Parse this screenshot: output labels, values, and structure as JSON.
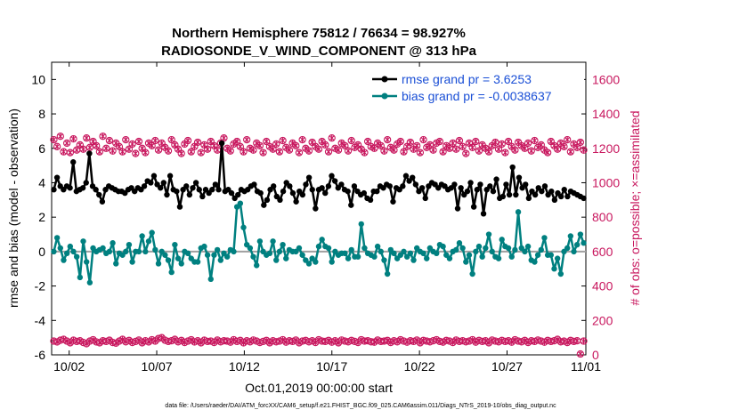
{
  "chart_data": {
    "type": "line",
    "title_line1": "Northern Hemisphere 75812 / 76634 = 98.927%",
    "title_line2": "RADIOSONDE_V_WIND_COMPONENT @ 313 hPa",
    "xlabel": "Oct.01,2019 00:00:00 start",
    "ylabel_left": "rmse and bias (model - observation)",
    "ylabel_right": "# of obs: o=possible; ×=assimilated",
    "footer": "data file: /Users/raeder/DAI/ATM_forcXX/CAM6_setup/f.e21.FHIST_BGC.f09_025.CAM6assim.011/Diags_NTrS_2019-10/obs_diag_output.nc",
    "xlim": [
      0.5,
      31.0
    ],
    "ylim_left": [
      -6,
      11
    ],
    "ylim_right": [
      0,
      1700
    ],
    "x_ticks": [
      1.5,
      6.5,
      11.5,
      16.5,
      21.5,
      26.5,
      31.0
    ],
    "x_tick_labels": [
      "10/02",
      "10/07",
      "10/12",
      "10/17",
      "10/22",
      "10/27",
      "11/01"
    ],
    "y_ticks_left": [
      -6,
      -4,
      -2,
      0,
      2,
      4,
      6,
      8,
      10
    ],
    "y_tick_labels_left": [
      "-6",
      "-4",
      "-2",
      "0",
      "2",
      "4",
      "6",
      "8",
      "10"
    ],
    "y_ticks_right": [
      0,
      200,
      400,
      600,
      800,
      1000,
      1200,
      1400,
      1600
    ],
    "y_tick_labels_right": [
      "0",
      "200",
      "400",
      "600",
      "800",
      "1000",
      "1200",
      "1400",
      "1600"
    ],
    "colors": {
      "rmse": "#000000",
      "bias": "#008080",
      "obs": "#c8175e",
      "legend_text": "#1a4fd6",
      "zero_line": "#a0a0a0"
    },
    "series": [
      {
        "name": "rmse grand pr = 3.6253",
        "axis": "left",
        "values": [
          3.6,
          4.3,
          3.8,
          3.6,
          3.8,
          3.7,
          5.2,
          3.5,
          3.6,
          3.7,
          4.0,
          5.7,
          3.8,
          3.6,
          3.3,
          2.9,
          3.6,
          3.8,
          3.7,
          3.6,
          3.5,
          3.5,
          3.4,
          3.6,
          3.7,
          3.5,
          3.7,
          3.6,
          3.8,
          4.1,
          4.0,
          4.4,
          3.9,
          3.7,
          4.0,
          3.3,
          4.4,
          3.6,
          3.5,
          2.6,
          3.6,
          3.8,
          3.3,
          3.7,
          4.0,
          3.6,
          3.2,
          3.6,
          3.4,
          3.6,
          3.9,
          3.6,
          6.3,
          3.5,
          3.6,
          3.4,
          3.1,
          3.3,
          3.6,
          3.5,
          3.6,
          3.8,
          3.9,
          3.5,
          3.4,
          2.7,
          3.0,
          3.6,
          3.8,
          3.2,
          3.0,
          3.5,
          4.0,
          3.8,
          3.4,
          2.9,
          3.5,
          3.3,
          3.9,
          4.3,
          3.6,
          2.5,
          3.6,
          3.7,
          3.4,
          3.8,
          4.4,
          4.1,
          3.7,
          3.9,
          3.6,
          3.5,
          2.7,
          3.8,
          3.5,
          3.3,
          3.4,
          3.1,
          3.0,
          3.5,
          3.5,
          3.8,
          3.7,
          3.9,
          3.8,
          2.9,
          3.7,
          3.6,
          3.8,
          4.4,
          4.1,
          4.3,
          3.9,
          3.5,
          3.7,
          3.1,
          3.8,
          4.0,
          3.9,
          3.7,
          3.9,
          3.8,
          3.6,
          3.7,
          3.9,
          2.5,
          3.7,
          3.3,
          3.5,
          4.0,
          2.6,
          3.6,
          3.9,
          2.2,
          3.6,
          3.8,
          3.5,
          4.2,
          3.1,
          3.2,
          3.9,
          3.3,
          4.9,
          3.3,
          4.3,
          3.7,
          3.9,
          3.1,
          3.5,
          3.3,
          3.7,
          3.5,
          3.8,
          3.3,
          3.5,
          3.0,
          3.4,
          3.2,
          3.6,
          3.2,
          3.5,
          3.4,
          3.3,
          3.2,
          3.1
        ]
      },
      {
        "name": "bias grand pr = -0.0038637",
        "axis": "left",
        "values": [
          0.0,
          0.8,
          0.2,
          -0.5,
          -0.1,
          0.3,
          0.0,
          -0.3,
          -1.5,
          0.6,
          -0.6,
          -1.8,
          0.2,
          0.0,
          0.1,
          0.2,
          -0.1,
          0.0,
          0.5,
          -0.7,
          -0.1,
          -0.2,
          0.0,
          0.4,
          -0.6,
          0.0,
          0.0,
          0.9,
          0.0,
          0.6,
          1.1,
          0.1,
          -0.7,
          0.0,
          -0.2,
          -0.5,
          -1.2,
          0.4,
          -0.4,
          -0.7,
          0.0,
          -0.1,
          -0.4,
          -0.6,
          -0.6,
          0.2,
          0.3,
          -0.2,
          -1.6,
          -0.2,
          0.1,
          -0.5,
          -0.1,
          -0.3,
          0.1,
          0.0,
          2.6,
          2.8,
          1.4,
          0.4,
          0.2,
          -0.3,
          -0.8,
          0.6,
          0.0,
          -0.2,
          -0.1,
          0.6,
          -0.5,
          0.0,
          0.4,
          -0.4,
          0.1,
          0.0,
          0.0,
          0.2,
          -0.2,
          -0.5,
          -0.7,
          -0.4,
          -0.6,
          0.3,
          0.7,
          0.3,
          0.2,
          -0.6,
          0.0,
          -0.2,
          -0.1,
          -0.1,
          -0.4,
          0.1,
          -0.3,
          -0.3,
          1.6,
          0.2,
          -0.1,
          -0.2,
          -0.3,
          0.3,
          0.0,
          -0.5,
          -1.3,
          0.1,
          -0.1,
          -0.4,
          -0.2,
          0.0,
          -0.3,
          -0.1,
          -0.5,
          0.2,
          0.0,
          -0.1,
          -0.4,
          0.2,
          0.0,
          -0.1,
          0.4,
          0.3,
          -0.2,
          -0.4,
          0.0,
          0.1,
          0.5,
          0.2,
          -0.6,
          -0.2,
          -1.3,
          0.0,
          0.3,
          -0.3,
          0.2,
          1.0,
          0.0,
          -0.3,
          -0.4,
          0.7,
          0.3,
          0.2,
          -0.3,
          0.1,
          2.3,
          0.2,
          0.0,
          0.3,
          -0.5,
          -0.6,
          -0.2,
          0.1,
          0.8,
          -0.2,
          -0.2,
          -1.0,
          -0.4,
          -1.3,
          0.0,
          0.2,
          0.9,
          0.0,
          0.4,
          1.0,
          0.5
        ]
      },
      {
        "name": "obs possible",
        "axis": "right",
        "marker": "circle",
        "values": [
          1250,
          1210,
          1270,
          1180,
          1230,
          1175,
          1255,
          1190,
          1220,
          1195,
          1260,
          1205,
          1240,
          1215,
          1180,
          1270,
          1200,
          1245,
          1185,
          1230,
          1210,
          1180,
          1250,
          1195,
          1225,
          1170,
          1240,
          1200,
          1175,
          1230,
          1215,
          1245,
          1190,
          1230,
          1205,
          1185,
          1250,
          1220,
          1195,
          1170,
          1225,
          1245,
          1180,
          1210,
          1235,
          1175,
          1220,
          1195,
          1240,
          1215,
          1190,
          1230,
          1260,
          1200,
          1185,
          1225,
          1240,
          1210,
          1180,
          1250,
          1200,
          1190,
          1230,
          1215,
          1175,
          1240,
          1210,
          1195,
          1225,
          1180,
          1245,
          1205,
          1190,
          1230,
          1215,
          1175,
          1250,
          1200,
          1185,
          1235,
          1210,
          1195,
          1240,
          1220,
          1180,
          1260,
          1200,
          1190,
          1230,
          1215,
          1185,
          1245,
          1205,
          1220,
          1195,
          1175,
          1240,
          1210,
          1200,
          1230,
          1215,
          1185,
          1250,
          1205,
          1190,
          1225,
          1240,
          1180,
          1210,
          1235,
          1195,
          1215,
          1175,
          1250,
          1205,
          1220,
          1190,
          1230,
          1240,
          1180,
          1215,
          1200,
          1230,
          1195,
          1245,
          1210,
          1170,
          1230,
          1205,
          1240,
          1185,
          1220,
          1200,
          1180,
          1215,
          1235,
          1195,
          1225,
          1175,
          1240,
          1210,
          1190,
          1235,
          1215,
          1200,
          1230,
          1185,
          1245,
          1205,
          1220,
          1190,
          1175,
          1240,
          1215,
          1195,
          1230,
          1210,
          1250,
          1180,
          1225,
          1205,
          1235,
          1190
        ]
      },
      {
        "name": "obs assimilated",
        "axis": "right",
        "marker": "x",
        "values": [
          1250,
          1210,
          1270,
          1180,
          1230,
          1175,
          1255,
          1190,
          1220,
          1195,
          1260,
          1205,
          1240,
          1215,
          1180,
          1270,
          1200,
          1245,
          1185,
          1230,
          1210,
          1180,
          1250,
          1195,
          1225,
          1170,
          1240,
          1200,
          1175,
          1230,
          1215,
          1245,
          1190,
          1230,
          1205,
          1185,
          1250,
          1220,
          1195,
          1170,
          1225,
          1245,
          1180,
          1210,
          1235,
          1175,
          1220,
          1195,
          1240,
          1215,
          1190,
          1230,
          1260,
          1200,
          1185,
          1225,
          1240,
          1210,
          1180,
          1250,
          1200,
          1190,
          1230,
          1215,
          1175,
          1240,
          1210,
          1195,
          1225,
          1180,
          1245,
          1205,
          1190,
          1230,
          1215,
          1175,
          1250,
          1200,
          1185,
          1235,
          1210,
          1195,
          1240,
          1220,
          1180,
          1260,
          1200,
          1190,
          1230,
          1215,
          1185,
          1245,
          1205,
          1220,
          1195,
          1175,
          1240,
          1210,
          1200,
          1230,
          1215,
          1185,
          1250,
          1205,
          1190,
          1225,
          1240,
          1180,
          1210,
          1235,
          1195,
          1215,
          1175,
          1250,
          1205,
          1220,
          1190,
          1230,
          1240,
          1180,
          1215,
          1200,
          1230,
          1195,
          1245,
          1210,
          1170,
          1230,
          1205,
          1240,
          1185,
          1220,
          1200,
          1180,
          1215,
          1235,
          1195,
          1225,
          1175,
          1240,
          1210,
          1190,
          1235,
          1215,
          1200,
          1230,
          1185,
          1245,
          1205,
          1220,
          1190,
          1175,
          1240,
          1215,
          1195,
          1230,
          1210,
          1250,
          1180,
          1225,
          1205,
          1235,
          1190
        ]
      },
      {
        "name": "obs low possible",
        "axis": "right",
        "marker": "circle",
        "values": [
          80,
          75,
          85,
          90,
          80,
          70,
          85,
          78,
          82,
          72,
          65,
          80,
          88,
          75,
          70,
          82,
          78,
          85,
          72,
          68,
          80,
          90,
          76,
          84,
          72,
          78,
          86,
          70,
          82,
          75,
          88,
          80,
          95,
          100,
          85,
          78,
          82,
          90,
          76,
          84,
          72,
          80,
          88,
          75,
          82,
          70,
          85,
          78,
          80,
          72,
          86,
          76,
          82,
          80,
          74,
          88,
          78,
          84,
          70,
          82,
          76,
          86,
          80,
          72,
          78,
          84,
          70,
          82,
          76,
          80,
          88,
          74,
          82,
          78,
          86,
          70,
          80,
          84,
          76,
          82,
          72,
          88,
          80,
          78,
          84,
          74,
          82,
          70,
          86,
          80,
          76,
          84,
          78,
          72,
          88,
          80,
          82,
          76,
          74,
          86,
          78,
          80,
          84,
          72,
          82,
          76,
          88,
          80,
          74,
          82,
          78,
          86,
          70,
          84,
          80,
          76,
          82,
          88,
          78,
          74,
          84,
          80,
          72,
          86,
          78,
          82,
          76,
          80,
          88,
          74,
          84,
          78,
          82,
          70,
          86,
          80,
          76,
          84,
          78,
          82,
          74,
          88,
          80,
          76,
          84,
          72,
          82,
          78,
          86,
          80,
          74,
          84,
          78,
          82,
          90,
          76,
          80,
          72,
          84,
          78,
          82,
          5,
          80
        ]
      },
      {
        "name": "obs low assimilated",
        "axis": "right",
        "marker": "x",
        "values": [
          80,
          75,
          85,
          90,
          80,
          70,
          85,
          78,
          82,
          72,
          65,
          80,
          88,
          75,
          70,
          82,
          78,
          85,
          72,
          68,
          80,
          90,
          76,
          84,
          72,
          78,
          86,
          70,
          82,
          75,
          88,
          80,
          95,
          100,
          85,
          78,
          82,
          90,
          76,
          84,
          72,
          80,
          88,
          75,
          82,
          70,
          85,
          78,
          80,
          72,
          86,
          76,
          82,
          80,
          74,
          88,
          78,
          84,
          70,
          82,
          76,
          86,
          80,
          72,
          78,
          84,
          70,
          82,
          76,
          80,
          88,
          74,
          82,
          78,
          86,
          70,
          80,
          84,
          76,
          82,
          72,
          88,
          80,
          78,
          84,
          74,
          82,
          70,
          86,
          80,
          76,
          84,
          78,
          72,
          88,
          80,
          82,
          76,
          74,
          86,
          78,
          80,
          84,
          72,
          82,
          76,
          88,
          80,
          74,
          82,
          78,
          86,
          70,
          84,
          80,
          76,
          82,
          88,
          78,
          74,
          84,
          80,
          72,
          86,
          78,
          82,
          76,
          80,
          88,
          74,
          84,
          78,
          82,
          70,
          86,
          80,
          76,
          84,
          78,
          82,
          74,
          88,
          80,
          76,
          84,
          72,
          82,
          78,
          86,
          80,
          74,
          84,
          78,
          82,
          90,
          76,
          80,
          72,
          84,
          78,
          82,
          5,
          80
        ]
      }
    ],
    "legend": [
      {
        "label": "rmse grand pr = 3.6253",
        "color": "#000000"
      },
      {
        "label": "bias grand pr = -0.0038637",
        "color": "#008080"
      }
    ]
  }
}
